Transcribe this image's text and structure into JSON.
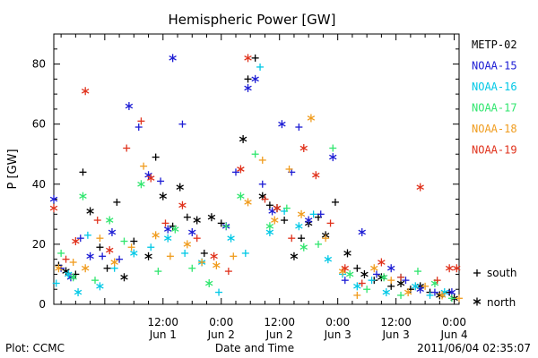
{
  "chart_data": {
    "type": "scatter",
    "title": "Hemispheric Power [GW]",
    "xlabel": "Date and Time",
    "ylabel": "P [GW]",
    "xlim": [
      "2011-05-31T13:30:00",
      "2011-06-04T01:00:00"
    ],
    "ylim": [
      0,
      90
    ],
    "yticks": [
      0,
      20,
      40,
      60,
      80
    ],
    "xticks": [
      {
        "t": "2011-06-01T12:00:00",
        "time": "12:00",
        "date": "Jun 1"
      },
      {
        "t": "2011-06-02T00:00:00",
        "time": "0:00",
        "date": "Jun 2"
      },
      {
        "t": "2011-06-02T12:00:00",
        "time": "12:00",
        "date": "Jun 2"
      },
      {
        "t": "2011-06-03T00:00:00",
        "time": "0:00",
        "date": "Jun 3"
      },
      {
        "t": "2011-06-03T12:00:00",
        "time": "12:00",
        "date": "Jun 3"
      },
      {
        "t": "2011-06-04T00:00:00",
        "time": "0:00",
        "date": "Jun 4"
      }
    ],
    "grid": false,
    "legend_position": "right",
    "marker_legend": {
      "south_symbol": "+",
      "south_label": "south",
      "north_symbol": "*",
      "north_label": "north"
    },
    "series": [
      {
        "name": "METP-02",
        "color": "#000000",
        "points": [
          [
            "2011-05-31T14:30:00",
            13,
            "s"
          ],
          [
            "2011-05-31T16:00:00",
            11,
            "n"
          ],
          [
            "2011-05-31T18:00:00",
            10,
            "s"
          ],
          [
            "2011-05-31T19:30:00",
            44,
            "s"
          ],
          [
            "2011-05-31T21:00:00",
            31,
            "n"
          ],
          [
            "2011-05-31T23:00:00",
            19,
            "s"
          ],
          [
            "2011-06-01T00:30:00",
            12,
            "s"
          ],
          [
            "2011-06-01T02:30:00",
            34,
            "s"
          ],
          [
            "2011-06-01T04:00:00",
            9,
            "n"
          ],
          [
            "2011-06-01T06:00:00",
            21,
            "s"
          ],
          [
            "2011-06-01T09:00:00",
            16,
            "n"
          ],
          [
            "2011-06-01T10:30:00",
            49,
            "s"
          ],
          [
            "2011-06-01T12:00:00",
            36,
            "n"
          ],
          [
            "2011-06-01T14:00:00",
            26,
            "s"
          ],
          [
            "2011-06-01T15:30:00",
            39,
            "n"
          ],
          [
            "2011-06-01T17:00:00",
            29,
            "s"
          ],
          [
            "2011-06-01T19:00:00",
            28,
            "n"
          ],
          [
            "2011-06-01T20:30:00",
            17,
            "s"
          ],
          [
            "2011-06-01T22:00:00",
            29,
            "n"
          ],
          [
            "2011-06-02T00:00:00",
            27,
            "s"
          ],
          [
            "2011-06-02T04:30:00",
            55,
            "n"
          ],
          [
            "2011-06-02T05:30:00",
            75,
            "s"
          ],
          [
            "2011-06-02T07:00:00",
            82,
            "s"
          ],
          [
            "2011-06-02T08:30:00",
            36,
            "n"
          ],
          [
            "2011-06-02T10:00:00",
            33,
            "s"
          ],
          [
            "2011-06-02T11:30:00",
            32,
            "n"
          ],
          [
            "2011-06-02T13:00:00",
            28,
            "s"
          ],
          [
            "2011-06-02T15:00:00",
            16,
            "n"
          ],
          [
            "2011-06-02T16:30:00",
            22,
            "s"
          ],
          [
            "2011-06-02T18:00:00",
            27,
            "n"
          ],
          [
            "2011-06-02T20:00:00",
            29,
            "s"
          ],
          [
            "2011-06-02T21:30:00",
            23,
            "n"
          ],
          [
            "2011-06-02T23:30:00",
            34,
            "s"
          ],
          [
            "2011-06-03T02:00:00",
            17,
            "n"
          ],
          [
            "2011-06-03T04:00:00",
            12,
            "s"
          ],
          [
            "2011-06-03T05:30:00",
            10,
            "n"
          ],
          [
            "2011-06-03T07:30:00",
            8,
            "s"
          ],
          [
            "2011-06-03T09:00:00",
            9,
            "n"
          ],
          [
            "2011-06-03T11:00:00",
            6,
            "s"
          ],
          [
            "2011-06-03T13:00:00",
            7,
            "n"
          ],
          [
            "2011-06-03T15:00:00",
            5,
            "s"
          ],
          [
            "2011-06-03T17:00:00",
            6,
            "n"
          ],
          [
            "2011-06-03T19:00:00",
            4,
            "s"
          ],
          [
            "2011-06-03T21:00:00",
            3,
            "n"
          ],
          [
            "2011-06-03T23:00:00",
            4,
            "s"
          ],
          [
            "2011-06-04T00:00:00",
            2,
            "n"
          ]
        ]
      },
      {
        "name": "NOAA-15",
        "color": "#1c1cd4",
        "points": [
          [
            "2011-05-31T13:30:00",
            35,
            "n"
          ],
          [
            "2011-05-31T15:00:00",
            12,
            "s"
          ],
          [
            "2011-05-31T17:00:00",
            9,
            "n"
          ],
          [
            "2011-05-31T19:00:00",
            22,
            "s"
          ],
          [
            "2011-05-31T21:00:00",
            16,
            "n"
          ],
          [
            "2011-05-31T23:30:00",
            16,
            "s"
          ],
          [
            "2011-06-01T01:30:00",
            24,
            "n"
          ],
          [
            "2011-06-01T03:00:00",
            15,
            "s"
          ],
          [
            "2011-06-01T05:00:00",
            66,
            "n"
          ],
          [
            "2011-06-01T07:00:00",
            59,
            "s"
          ],
          [
            "2011-06-01T09:00:00",
            43,
            "n"
          ],
          [
            "2011-06-01T11:30:00",
            41,
            "s"
          ],
          [
            "2011-06-01T13:00:00",
            25,
            "n"
          ],
          [
            "2011-06-01T14:00:00",
            82,
            "n"
          ],
          [
            "2011-06-01T16:00:00",
            60,
            "s"
          ],
          [
            "2011-06-01T18:00:00",
            24,
            "n"
          ],
          [
            "2011-06-02T01:00:00",
            26,
            "n"
          ],
          [
            "2011-06-02T03:00:00",
            44,
            "s"
          ],
          [
            "2011-06-02T05:30:00",
            72,
            "n"
          ],
          [
            "2011-06-02T07:00:00",
            75,
            "n"
          ],
          [
            "2011-06-02T08:30:00",
            40,
            "s"
          ],
          [
            "2011-06-02T10:30:00",
            31,
            "n"
          ],
          [
            "2011-06-02T12:30:00",
            60,
            "n"
          ],
          [
            "2011-06-02T14:30:00",
            44,
            "s"
          ],
          [
            "2011-06-02T16:00:00",
            59,
            "s"
          ],
          [
            "2011-06-02T18:00:00",
            28,
            "n"
          ],
          [
            "2011-06-02T20:30:00",
            30,
            "s"
          ],
          [
            "2011-06-02T23:00:00",
            49,
            "n"
          ],
          [
            "2011-06-03T01:30:00",
            8,
            "s"
          ],
          [
            "2011-06-03T05:00:00",
            24,
            "n"
          ],
          [
            "2011-06-03T08:00:00",
            10,
            "s"
          ],
          [
            "2011-06-03T11:00:00",
            12,
            "n"
          ],
          [
            "2011-06-03T14:00:00",
            8,
            "s"
          ],
          [
            "2011-06-03T17:00:00",
            5,
            "n"
          ],
          [
            "2011-06-03T20:00:00",
            4,
            "s"
          ],
          [
            "2011-06-03T23:30:00",
            4,
            "n"
          ]
        ]
      },
      {
        "name": "NOAA-16",
        "color": "#00c8e6",
        "points": [
          [
            "2011-05-31T14:00:00",
            7,
            "s"
          ],
          [
            "2011-05-31T16:30:00",
            10,
            "n"
          ],
          [
            "2011-05-31T18:30:00",
            4,
            "n"
          ],
          [
            "2011-05-31T20:30:00",
            23,
            "s"
          ],
          [
            "2011-05-31T23:00:00",
            6,
            "n"
          ],
          [
            "2011-06-01T02:00:00",
            12,
            "s"
          ],
          [
            "2011-06-01T06:00:00",
            17,
            "n"
          ],
          [
            "2011-06-01T09:30:00",
            19,
            "s"
          ],
          [
            "2011-06-01T13:00:00",
            22,
            "n"
          ],
          [
            "2011-06-01T16:30:00",
            17,
            "s"
          ],
          [
            "2011-06-01T20:00:00",
            14,
            "n"
          ],
          [
            "2011-06-01T23:30:00",
            4,
            "s"
          ],
          [
            "2011-06-02T02:00:00",
            22,
            "n"
          ],
          [
            "2011-06-02T05:00:00",
            17,
            "s"
          ],
          [
            "2011-06-02T08:00:00",
            79,
            "s"
          ],
          [
            "2011-06-02T10:00:00",
            24,
            "n"
          ],
          [
            "2011-06-02T13:00:00",
            31,
            "s"
          ],
          [
            "2011-06-02T16:00:00",
            26,
            "n"
          ],
          [
            "2011-06-02T19:00:00",
            30,
            "s"
          ],
          [
            "2011-06-02T22:00:00",
            15,
            "n"
          ],
          [
            "2011-06-03T01:00:00",
            10,
            "s"
          ],
          [
            "2011-06-03T04:00:00",
            6,
            "n"
          ],
          [
            "2011-06-03T07:00:00",
            8,
            "s"
          ],
          [
            "2011-06-03T10:00:00",
            4,
            "n"
          ],
          [
            "2011-06-03T13:00:00",
            9,
            "s"
          ],
          [
            "2011-06-03T16:00:00",
            6,
            "n"
          ],
          [
            "2011-06-03T19:00:00",
            3,
            "s"
          ],
          [
            "2011-06-03T22:00:00",
            4,
            "n"
          ]
        ]
      },
      {
        "name": "NOAA-17",
        "color": "#30e66e",
        "points": [
          [
            "2011-05-31T15:00:00",
            17,
            "s"
          ],
          [
            "2011-05-31T17:30:00",
            9,
            "n"
          ],
          [
            "2011-05-31T19:30:00",
            36,
            "n"
          ],
          [
            "2011-05-31T22:00:00",
            8,
            "s"
          ],
          [
            "2011-06-01T01:00:00",
            28,
            "n"
          ],
          [
            "2011-06-01T04:00:00",
            21,
            "s"
          ],
          [
            "2011-06-01T07:30:00",
            40,
            "n"
          ],
          [
            "2011-06-01T11:00:00",
            11,
            "s"
          ],
          [
            "2011-06-01T14:30:00",
            25,
            "n"
          ],
          [
            "2011-06-01T18:00:00",
            12,
            "s"
          ],
          [
            "2011-06-01T21:30:00",
            7,
            "n"
          ],
          [
            "2011-06-02T01:00:00",
            26,
            "s"
          ],
          [
            "2011-06-02T04:00:00",
            36,
            "n"
          ],
          [
            "2011-06-02T07:00:00",
            50,
            "s"
          ],
          [
            "2011-06-02T10:00:00",
            26,
            "n"
          ],
          [
            "2011-06-02T13:30:00",
            32,
            "s"
          ],
          [
            "2011-06-02T17:00:00",
            19,
            "n"
          ],
          [
            "2011-06-02T20:00:00",
            20,
            "s"
          ],
          [
            "2011-06-02T23:00:00",
            52,
            "s"
          ],
          [
            "2011-06-03T02:30:00",
            10,
            "n"
          ],
          [
            "2011-06-03T06:00:00",
            5,
            "s"
          ],
          [
            "2011-06-03T09:30:00",
            9,
            "n"
          ],
          [
            "2011-06-03T13:00:00",
            3,
            "s"
          ],
          [
            "2011-06-03T16:30:00",
            11,
            "s"
          ],
          [
            "2011-06-03T20:00:00",
            7,
            "n"
          ],
          [
            "2011-06-03T23:30:00",
            2,
            "s"
          ]
        ]
      },
      {
        "name": "NOAA-18",
        "color": "#f09c1e",
        "points": [
          [
            "2011-05-31T14:30:00",
            12,
            "n"
          ],
          [
            "2011-05-31T17:30:00",
            14,
            "s"
          ],
          [
            "2011-05-31T20:00:00",
            12,
            "n"
          ],
          [
            "2011-05-31T23:00:00",
            22,
            "s"
          ],
          [
            "2011-06-01T02:00:00",
            14,
            "n"
          ],
          [
            "2011-06-01T05:30:00",
            19,
            "s"
          ],
          [
            "2011-06-01T08:00:00",
            46,
            "s"
          ],
          [
            "2011-06-01T10:30:00",
            23,
            "n"
          ],
          [
            "2011-06-01T13:30:00",
            16,
            "s"
          ],
          [
            "2011-06-01T17:00:00",
            20,
            "n"
          ],
          [
            "2011-06-01T20:00:00",
            14,
            "s"
          ],
          [
            "2011-06-01T23:00:00",
            13,
            "n"
          ],
          [
            "2011-06-02T02:30:00",
            16,
            "s"
          ],
          [
            "2011-06-02T05:30:00",
            34,
            "n"
          ],
          [
            "2011-06-02T08:30:00",
            48,
            "s"
          ],
          [
            "2011-06-02T11:00:00",
            28,
            "n"
          ],
          [
            "2011-06-02T14:00:00",
            45,
            "s"
          ],
          [
            "2011-06-02T16:30:00",
            30,
            "n"
          ],
          [
            "2011-06-02T18:30:00",
            62,
            "n"
          ],
          [
            "2011-06-02T21:30:00",
            22,
            "s"
          ],
          [
            "2011-06-03T01:00:00",
            11,
            "n"
          ],
          [
            "2011-06-03T04:00:00",
            3,
            "s"
          ],
          [
            "2011-06-03T07:30:00",
            12,
            "n"
          ],
          [
            "2011-06-03T11:00:00",
            8,
            "s"
          ],
          [
            "2011-06-03T14:30:00",
            4,
            "n"
          ],
          [
            "2011-06-03T18:00:00",
            6,
            "s"
          ],
          [
            "2011-06-03T21:30:00",
            3,
            "n"
          ],
          [
            "2011-06-04T01:00:00",
            2,
            "s"
          ]
        ]
      },
      {
        "name": "NOAA-19",
        "color": "#e0321c",
        "points": [
          [
            "2011-05-31T13:30:00",
            32,
            "n"
          ],
          [
            "2011-05-31T16:00:00",
            15,
            "s"
          ],
          [
            "2011-05-31T18:00:00",
            21,
            "n"
          ],
          [
            "2011-05-31T20:00:00",
            71,
            "n"
          ],
          [
            "2011-05-31T22:30:00",
            28,
            "s"
          ],
          [
            "2011-06-01T01:00:00",
            18,
            "n"
          ],
          [
            "2011-06-01T04:30:00",
            52,
            "s"
          ],
          [
            "2011-06-01T07:30:00",
            61,
            "s"
          ],
          [
            "2011-06-01T09:30:00",
            42,
            "n"
          ],
          [
            "2011-06-01T12:30:00",
            27,
            "s"
          ],
          [
            "2011-06-01T16:00:00",
            33,
            "n"
          ],
          [
            "2011-06-01T19:00:00",
            22,
            "s"
          ],
          [
            "2011-06-01T22:30:00",
            16,
            "n"
          ],
          [
            "2011-06-02T01:30:00",
            11,
            "s"
          ],
          [
            "2011-06-02T04:00:00",
            45,
            "n"
          ],
          [
            "2011-06-02T05:30:00",
            82,
            "n"
          ],
          [
            "2011-06-02T09:00:00",
            35,
            "s"
          ],
          [
            "2011-06-02T11:30:00",
            32,
            "n"
          ],
          [
            "2011-06-02T14:30:00",
            22,
            "s"
          ],
          [
            "2011-06-02T17:00:00",
            52,
            "n"
          ],
          [
            "2011-06-02T19:30:00",
            43,
            "n"
          ],
          [
            "2011-06-02T22:30:00",
            27,
            "s"
          ],
          [
            "2011-06-03T01:30:00",
            12,
            "n"
          ],
          [
            "2011-06-03T05:00:00",
            7,
            "s"
          ],
          [
            "2011-06-03T09:00:00",
            14,
            "n"
          ],
          [
            "2011-06-03T13:00:00",
            9,
            "s"
          ],
          [
            "2011-06-03T17:00:00",
            39,
            "n"
          ],
          [
            "2011-06-03T20:30:00",
            8,
            "s"
          ],
          [
            "2011-06-03T23:00:00",
            12,
            "n"
          ],
          [
            "2011-06-04T00:30:00",
            12,
            "n"
          ]
        ]
      }
    ]
  },
  "footer": {
    "plot_credit": "Plot: CCMC",
    "timestamp": "2011/06/04 02:35:07"
  }
}
